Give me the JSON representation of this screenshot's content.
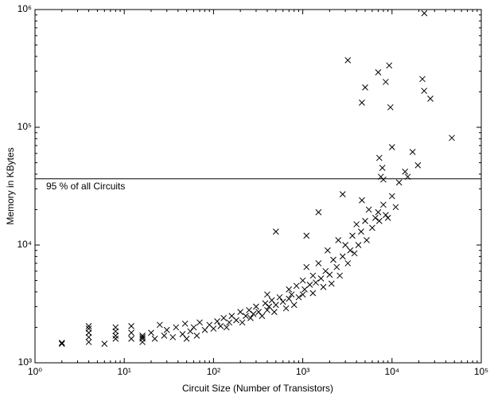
{
  "chart_data": {
    "type": "scatter",
    "x_label": "Circuit Size (Number of Transistors)",
    "y_label": "Memory in KBytes",
    "log_x": true,
    "log_y": true,
    "color": "#000000",
    "xlim": [
      1,
      100000
    ],
    "xticks": [
      {
        "value": 1,
        "label": "10⁰"
      },
      {
        "value": 10,
        "label": "10¹"
      },
      {
        "value": 100,
        "label": "10²"
      },
      {
        "value": 1000,
        "label": "10³"
      },
      {
        "value": 10000,
        "label": "10⁴"
      },
      {
        "value": 100000,
        "label": "10⁵"
      }
    ],
    "ylim": [
      1000,
      1000000
    ],
    "yticks": [
      {
        "value": 1000,
        "label": "10³"
      },
      {
        "value": 10000,
        "label": "10⁴"
      },
      {
        "value": 100000,
        "label": "10⁵"
      },
      {
        "value": 1000000,
        "label": "10⁶"
      }
    ],
    "reference_line": {
      "value": 36500,
      "label": "95 % of all Circuits"
    },
    "x": [
      2,
      2,
      4,
      4,
      4,
      4,
      4,
      6,
      8,
      8,
      8,
      8,
      12,
      12,
      12,
      16,
      16,
      16,
      16,
      20,
      22,
      25,
      28,
      30,
      35,
      38,
      45,
      48,
      50,
      55,
      60,
      65,
      70,
      80,
      90,
      100,
      110,
      120,
      130,
      140,
      150,
      160,
      180,
      200,
      210,
      230,
      250,
      260,
      280,
      300,
      320,
      350,
      380,
      400,
      400,
      420,
      450,
      480,
      500,
      500,
      550,
      600,
      650,
      700,
      700,
      750,
      800,
      850,
      900,
      1000,
      1000,
      1050,
      1100,
      1100,
      1200,
      1300,
      1300,
      1400,
      1500,
      1500,
      1600,
      1700,
      1800,
      1900,
      2000,
      2100,
      2200,
      2400,
      2500,
      2600,
      2800,
      2800,
      3000,
      3200,
      3400,
      3600,
      3800,
      4000,
      4200,
      4500,
      4600,
      5000,
      5200,
      5500,
      6000,
      6500,
      7000,
      7200,
      7500,
      8000,
      8000,
      8500,
      9000,
      10000,
      11000,
      12000,
      14000,
      15000,
      3200,
      7000,
      9300,
      8500,
      5000,
      4600,
      9600,
      21900,
      22900,
      26900,
      23000,
      10000,
      46800,
      7200,
      7800,
      17000,
      19500
    ],
    "values": [
      1450,
      1480,
      1500,
      1650,
      1800,
      1950,
      2050,
      1450,
      1600,
      1700,
      1850,
      2000,
      1600,
      1800,
      2050,
      1500,
      1600,
      1700,
      1650,
      1800,
      1600,
      2100,
      1700,
      1900,
      1650,
      2000,
      1750,
      2150,
      1600,
      1850,
      2000,
      1700,
      2200,
      1900,
      2100,
      1950,
      2250,
      2050,
      2400,
      2000,
      2200,
      2500,
      2300,
      2700,
      2200,
      2500,
      2800,
      2400,
      2600,
      3000,
      2700,
      2500,
      3200,
      3800,
      2800,
      3000,
      3400,
      2700,
      13000,
      3100,
      3600,
      3300,
      2900,
      4200,
      3500,
      3800,
      3100,
      4500,
      3600,
      5000,
      3800,
      4200,
      12000,
      6500,
      4600,
      5500,
      3900,
      4800,
      19000,
      7000,
      5200,
      4400,
      6000,
      9000,
      5600,
      4700,
      7500,
      6500,
      11000,
      5500,
      27000,
      8000,
      10000,
      7000,
      9000,
      12000,
      8500,
      15000,
      10000,
      13000,
      24000,
      16000,
      11000,
      20000,
      14000,
      17000,
      19000,
      16000,
      38000,
      36000,
      22000,
      18000,
      17000,
      26000,
      21000,
      34000,
      42000,
      38000,
      371000,
      293000,
      335000,
      243000,
      218000,
      162000,
      148000,
      257000,
      204000,
      175000,
      930000,
      67800,
      81300,
      55000,
      45200,
      61700,
      47600
    ]
  }
}
